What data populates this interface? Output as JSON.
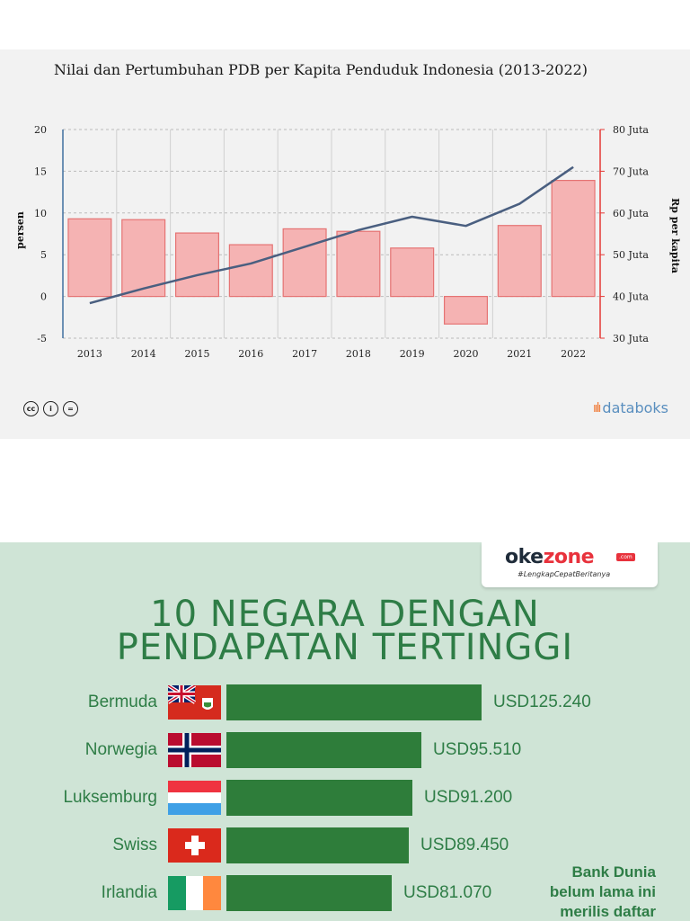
{
  "chart_data": [
    {
      "type": "bar+line",
      "title": "Nilai dan Pertumbuhan PDB per Kapita Penduduk Indonesia (2013-2022)",
      "categories": [
        "2013",
        "2014",
        "2015",
        "2016",
        "2017",
        "2018",
        "2019",
        "2020",
        "2021",
        "2022"
      ],
      "series": [
        {
          "name": "Pertumbuhan PDB per Kapita",
          "type": "bar",
          "axis": "left",
          "unit": "persen",
          "values": [
            9.3,
            9.2,
            7.6,
            6.2,
            8.1,
            7.8,
            5.8,
            -3.3,
            8.5,
            13.9
          ]
        },
        {
          "name": "PDB per Kapita",
          "type": "line",
          "axis": "right",
          "unit": "Juta Rupiah",
          "values": [
            38.4,
            41.9,
            45.1,
            47.9,
            51.9,
            55.9,
            59.1,
            56.9,
            62.2,
            71.0
          ]
        }
      ],
      "ylabel": "persen",
      "ylim": [
        -5,
        20
      ],
      "yticks": [
        "-5",
        "0",
        "5",
        "10",
        "15",
        "20"
      ],
      "ylabel_right": "Rp per kapita",
      "ylim_right": [
        30,
        80
      ],
      "yticks_right": [
        "30 Juta",
        "40 Juta",
        "50 Juta",
        "60 Juta",
        "70 Juta",
        "80 Juta"
      ],
      "colors": {
        "bar_fill": "#f5b3b3",
        "bar_stroke": "#e57373",
        "line": "#4a5f80",
        "right_axis": "#e53935",
        "left_axis": "#3f6fa0",
        "grid": "#bbbbbb"
      },
      "grid": true,
      "source_logo": "databoks",
      "license_icons": [
        "cc-icon",
        "by-icon",
        "equal-icon"
      ],
      "license_glyphs": [
        "cc",
        "i",
        "="
      ]
    },
    {
      "type": "bar-horizontal",
      "title": "10 NEGARA DENGAN PENDAPATAN TERTINGGI",
      "brand": {
        "name_a": "oke",
        "name_b": "zone",
        "suffix": ".com",
        "tagline": "#LengkapCepatBeritanya"
      },
      "categories": [
        "Bermuda",
        "Norwegia",
        "Luksemburg",
        "Swiss",
        "Irlandia"
      ],
      "values": [
        125240,
        95510,
        91200,
        89450,
        81070
      ],
      "value_labels": [
        "USD125.240",
        "USD95.510",
        "USD91.200",
        "USD89.450",
        "USD81.070"
      ],
      "flags": [
        "bermuda-flag",
        "norway-flag",
        "luxembourg-flag",
        "switzerland-flag",
        "ireland-flag"
      ],
      "note": [
        "Bank Dunia",
        "belum lama ini",
        "merilis daftar"
      ],
      "colors": {
        "bar": "#2e7d3a",
        "text": "#2e7d46",
        "background": "#cfe4d6"
      }
    }
  ]
}
